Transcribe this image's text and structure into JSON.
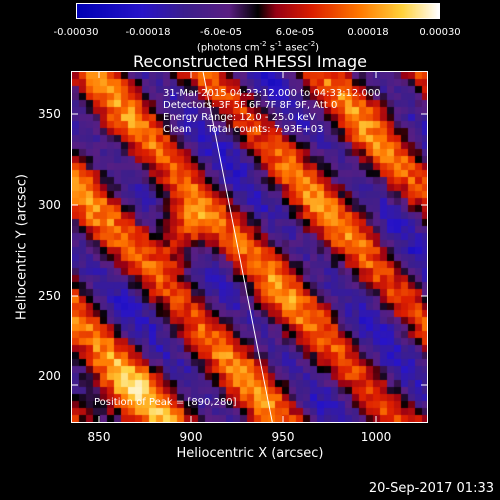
{
  "colorbar": {
    "labels": [
      "-0.00030",
      "-0.00018",
      "-6.0e-05",
      "6.0e-05",
      "0.00018",
      "0.00030"
    ],
    "unit_main": "(photons cm",
    "unit_sup1": "-2",
    "unit_mid": " s",
    "unit_sup2": "-1",
    "unit_end": " asec",
    "unit_sup3": "-2",
    "unit_close": ")"
  },
  "plot": {
    "title": "Reconstructed RHESSI Image",
    "xlabel": "Heliocentric X (arcsec)",
    "ylabel": "Heliocentric Y (arcsec)",
    "x_ticks": [
      "850",
      "900",
      "950",
      "1000"
    ],
    "y_ticks": [
      "200",
      "250",
      "300",
      "350"
    ],
    "info_lines": [
      "31-Mar-2015 04:23:12.000 to 04:33:12.000",
      "Detectors: 3F 5F 6F 7F 8F 9F, Att 0",
      "Energy Range: 12.0 - 25.0 keV",
      "Clean     Total counts: 7.93E+03"
    ],
    "peak_text": "Position of Peak = [890,280]"
  },
  "footer": {
    "date": "20-Sep-2017 01:33"
  },
  "chart_data": {
    "type": "heatmap",
    "title": "Reconstructed RHESSI Image",
    "xlabel": "Heliocentric X (arcsec)",
    "ylabel": "Heliocentric Y (arcsec)",
    "xlim": [
      835,
      1030
    ],
    "ylim": [
      180,
      375
    ],
    "color_range": [
      -0.0003,
      0.0003
    ],
    "peak": [
      890,
      280
    ],
    "limb_line": [
      [
        907,
        375
      ],
      [
        945,
        180
      ]
    ]
  }
}
